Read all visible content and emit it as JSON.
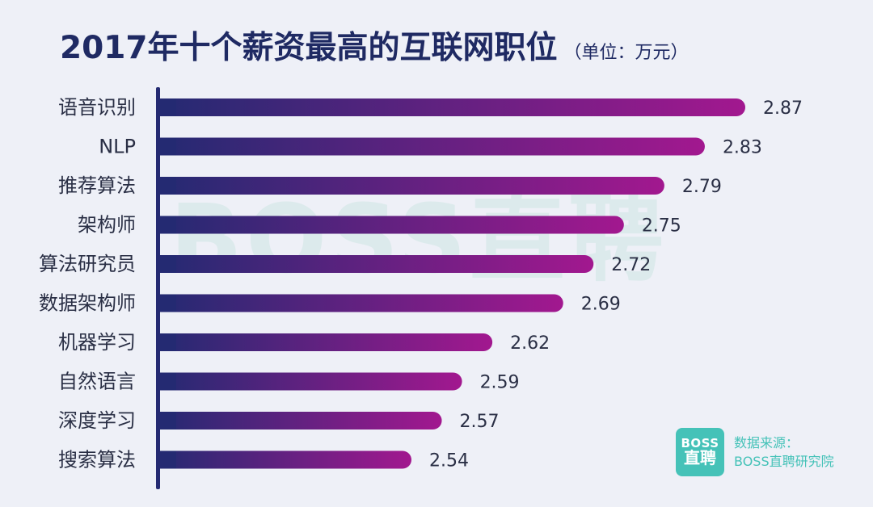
{
  "header": {
    "title": "2017年十个薪资最高的互联网职位",
    "unit": "（单位：万元）"
  },
  "watermark": "BOSS直聘",
  "source": {
    "logo_top": "BOSS",
    "logo_bottom": "直聘",
    "label": "数据来源：",
    "name": "BOSS直聘研究院"
  },
  "colors": {
    "bar_start": "#242a72",
    "bar_end": "#a2188f",
    "axis": "#242a72",
    "title": "#1f2a63",
    "brand": "#45c2b8"
  },
  "chart_data": {
    "type": "bar",
    "orientation": "horizontal",
    "title": "2017年十个薪资最高的互联网职位",
    "unit": "万元",
    "categories": [
      "语音识别",
      "NLP",
      "推荐算法",
      "架构师",
      "算法研究员",
      "数据架构师",
      "机器学习",
      "自然语言",
      "深度学习",
      "搜索算法"
    ],
    "values": [
      2.87,
      2.83,
      2.79,
      2.75,
      2.72,
      2.69,
      2.62,
      2.59,
      2.57,
      2.54
    ],
    "value_labels": [
      "2.87",
      "2.83",
      "2.79",
      "2.75",
      "2.72",
      "2.69",
      "2.62",
      "2.59",
      "2.57",
      "2.54"
    ]
  }
}
